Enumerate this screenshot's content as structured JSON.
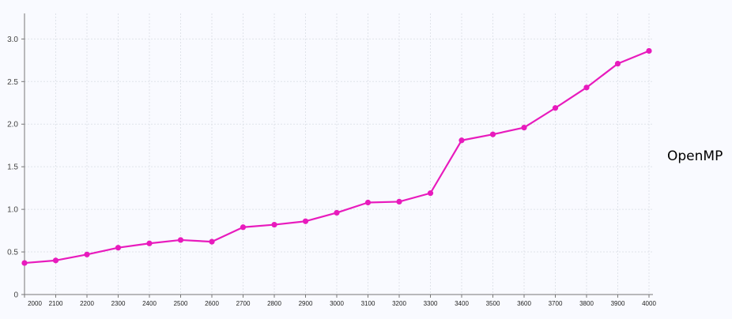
{
  "chart_data": {
    "type": "line",
    "x": [
      "2000",
      "2100",
      "2200",
      "2300",
      "2400",
      "2500",
      "2600",
      "2700",
      "2800",
      "2900",
      "3000",
      "3100",
      "3200",
      "3300",
      "3400",
      "3500",
      "3600",
      "3700",
      "3800",
      "3900",
      "4000"
    ],
    "x_tick_labels": [
      "2000",
      "2100",
      "2200",
      "2300",
      "2400",
      "2500",
      "2600",
      "2700",
      "2800",
      "2900",
      "3000",
      "3100",
      "3200",
      "3300",
      "3400",
      "3500",
      "3600",
      "3700",
      "3800",
      "3900",
      "4000"
    ],
    "y_ticks": [
      0,
      0.5,
      1.0,
      1.5,
      2.0,
      2.5,
      3.0
    ],
    "y_tick_labels": [
      "0",
      "0.5",
      "1.0",
      "1.5",
      "2.0",
      "2.5",
      "3.0"
    ],
    "ylim": [
      0,
      3.3
    ],
    "series": [
      {
        "name": "OpenMP",
        "color": "#e81bbd",
        "values": [
          0.37,
          0.4,
          0.47,
          0.55,
          0.6,
          0.64,
          0.62,
          0.79,
          0.82,
          0.86,
          0.96,
          1.08,
          1.09,
          1.19,
          1.81,
          1.88,
          1.96,
          2.19,
          2.43,
          2.71,
          2.86
        ]
      }
    ],
    "grid": true,
    "legend": "right",
    "title": "",
    "xlabel": "",
    "ylabel": ""
  }
}
